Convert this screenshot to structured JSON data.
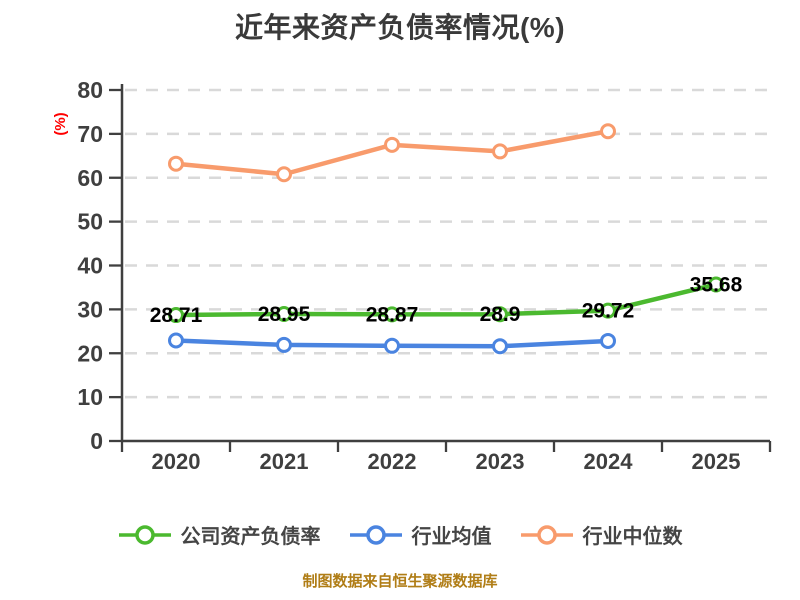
{
  "chart_data": {
    "type": "line",
    "title": "近年来资产负债率情况(%)",
    "ylabel": "(%)",
    "xlabel": "",
    "categories": [
      "2020",
      "2021",
      "2022",
      "2023",
      "2024",
      "2025"
    ],
    "ylim": [
      0,
      80
    ],
    "yticks": [
      0,
      10,
      20,
      30,
      40,
      50,
      60,
      70,
      80
    ],
    "grid": "horizontal-dashed",
    "legend_position": "bottom",
    "series": [
      {
        "name": "公司资产负债率",
        "color": "#4bb92f",
        "show_labels": true,
        "values": [
          28.71,
          28.95,
          28.87,
          28.9,
          29.72,
          35.68
        ]
      },
      {
        "name": "行业均值",
        "color": "#4a84e0",
        "show_labels": false,
        "values": [
          22.9,
          21.9,
          21.7,
          21.6,
          22.8,
          null
        ]
      },
      {
        "name": "行业中位数",
        "color": "#f89b6c",
        "show_labels": false,
        "values": [
          63.2,
          60.8,
          67.5,
          66,
          70.6,
          null
        ]
      }
    ]
  },
  "source_note": "制图数据来自恒生聚源数据库",
  "colors": {
    "background": "#ffffff",
    "axis": "#3f3f3f",
    "grid": "#d9d9d9",
    "title": "#3a3a3a",
    "data_label": "#000000",
    "legend_text": "#454545",
    "ylabel_red": "#ff0000",
    "source_note": "#b07d16"
  }
}
